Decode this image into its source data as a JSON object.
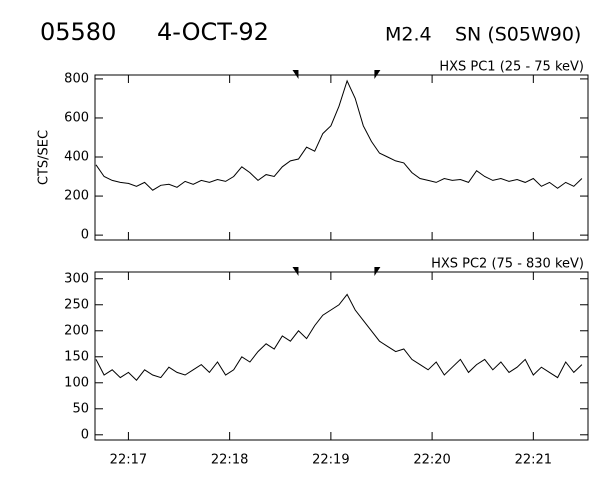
{
  "header": {
    "event": "05580",
    "date": "4-OCT-92",
    "class": "M2.4",
    "location": "SN (S05W90)"
  },
  "chart_data": [
    {
      "type": "line",
      "title": "HXS PC1 (25 - 75 keV)",
      "ylabel": "CTS/SEC",
      "x": [
        16.68,
        16.76,
        16.84,
        16.92,
        17.0,
        17.08,
        17.16,
        17.24,
        17.32,
        17.4,
        17.48,
        17.56,
        17.64,
        17.72,
        17.8,
        17.88,
        17.96,
        18.04,
        18.12,
        18.2,
        18.28,
        18.36,
        18.44,
        18.52,
        18.6,
        18.68,
        18.76,
        18.84,
        18.92,
        19.0,
        19.08,
        19.16,
        19.24,
        19.32,
        19.4,
        19.48,
        19.56,
        19.64,
        19.72,
        19.8,
        19.88,
        19.96,
        20.04,
        20.12,
        20.2,
        20.28,
        20.36,
        20.44,
        20.52,
        20.6,
        20.68,
        20.76,
        20.84,
        20.92,
        21.0,
        21.08,
        21.16,
        21.24,
        21.32,
        21.4,
        21.48
      ],
      "series": [
        {
          "color": "#000000",
          "values": [
            360,
            300,
            280,
            270,
            265,
            250,
            270,
            230,
            255,
            260,
            245,
            275,
            260,
            280,
            270,
            285,
            275,
            300,
            350,
            320,
            280,
            310,
            300,
            350,
            380,
            390,
            450,
            430,
            520,
            560,
            660,
            790,
            700,
            560,
            480,
            420,
            400,
            380,
            370,
            320,
            290,
            280,
            270,
            290,
            280,
            285,
            270,
            330,
            300,
            280,
            290,
            275,
            285,
            270,
            290,
            250,
            270,
            240,
            270,
            250,
            290
          ]
        }
      ],
      "xlim": [
        16.67,
        21.54
      ],
      "ylim": [
        -25,
        820
      ],
      "yticks": [
        0,
        200,
        400,
        600,
        800
      ],
      "xticks": [
        17,
        18,
        19,
        20,
        21
      ],
      "markers": [
        18.68,
        19.43
      ]
    },
    {
      "type": "line",
      "title": "HXS PC2 (75 - 830 keV)",
      "x": [
        16.68,
        16.76,
        16.84,
        16.92,
        17.0,
        17.08,
        17.16,
        17.24,
        17.32,
        17.4,
        17.48,
        17.56,
        17.64,
        17.72,
        17.8,
        17.88,
        17.96,
        18.04,
        18.12,
        18.2,
        18.28,
        18.36,
        18.44,
        18.52,
        18.6,
        18.68,
        18.76,
        18.84,
        18.92,
        19.0,
        19.08,
        19.16,
        19.24,
        19.32,
        19.4,
        19.48,
        19.56,
        19.64,
        19.72,
        19.8,
        19.88,
        19.96,
        20.04,
        20.12,
        20.2,
        20.28,
        20.36,
        20.44,
        20.52,
        20.6,
        20.68,
        20.76,
        20.84,
        20.92,
        21.0,
        21.08,
        21.16,
        21.24,
        21.32,
        21.4,
        21.48
      ],
      "series": [
        {
          "color": "#000000",
          "values": [
            145,
            115,
            125,
            110,
            120,
            105,
            125,
            115,
            110,
            130,
            120,
            115,
            125,
            135,
            120,
            140,
            115,
            125,
            150,
            140,
            160,
            175,
            165,
            190,
            180,
            200,
            185,
            210,
            230,
            240,
            250,
            270,
            240,
            220,
            200,
            180,
            170,
            160,
            165,
            145,
            135,
            125,
            140,
            115,
            130,
            145,
            120,
            135,
            145,
            125,
            140,
            120,
            130,
            145,
            115,
            130,
            120,
            110,
            140,
            120,
            135
          ]
        }
      ],
      "xlim": [
        16.67,
        21.54
      ],
      "ylim": [
        -10,
        313
      ],
      "yticks": [
        0,
        50,
        100,
        150,
        200,
        250,
        300
      ],
      "xticks": [
        {
          "value": 17,
          "label": "22:17"
        },
        {
          "value": 18,
          "label": "22:18"
        },
        {
          "value": 19,
          "label": "22:19"
        },
        {
          "value": 20,
          "label": "22:20"
        },
        {
          "value": 21,
          "label": "22:21"
        }
      ],
      "markers": [
        18.68,
        19.43
      ]
    }
  ]
}
